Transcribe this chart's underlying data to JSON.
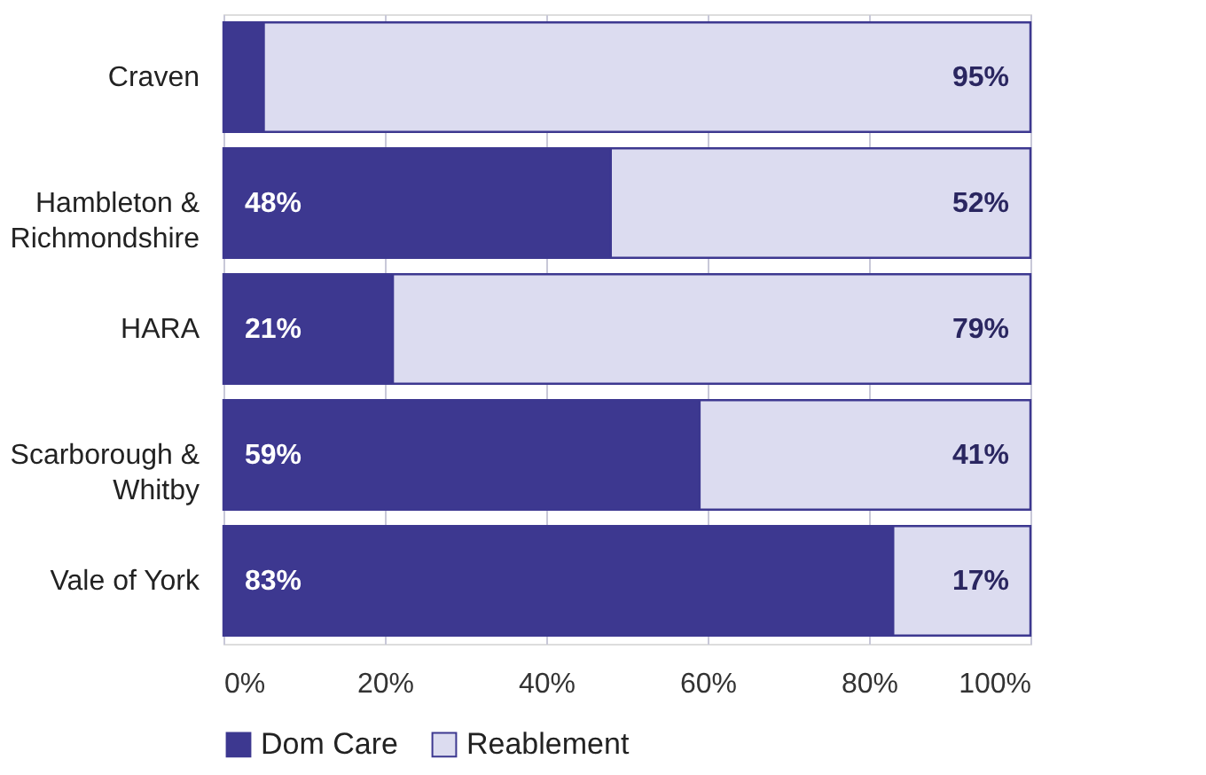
{
  "chart_data": {
    "type": "bar",
    "orientation": "horizontal",
    "stacked": true,
    "categories": [
      "Craven",
      "Hambleton & Richmondshire",
      "HARA",
      "Scarborough & Whitby",
      "Vale of York"
    ],
    "series": [
      {
        "name": "Dom Care",
        "color": "#3d3890",
        "values": [
          5,
          48,
          21,
          59,
          83
        ],
        "value_labels": [
          null,
          "48%",
          "21%",
          "59%",
          "83%"
        ]
      },
      {
        "name": "Reablement",
        "color": "#dcdcf0",
        "values": [
          95,
          52,
          79,
          41,
          17
        ],
        "value_labels": [
          "95%",
          "52%",
          "79%",
          "41%",
          "17%"
        ]
      }
    ],
    "xlim": [
      0,
      100
    ],
    "xticks": [
      {
        "value": 0,
        "label": "0%"
      },
      {
        "value": 20,
        "label": "20%"
      },
      {
        "value": 40,
        "label": "40%"
      },
      {
        "value": 60,
        "label": "60%"
      },
      {
        "value": 80,
        "label": "80%"
      },
      {
        "value": 100,
        "label": "100%"
      }
    ],
    "grid": "x",
    "legend": "bottom"
  }
}
